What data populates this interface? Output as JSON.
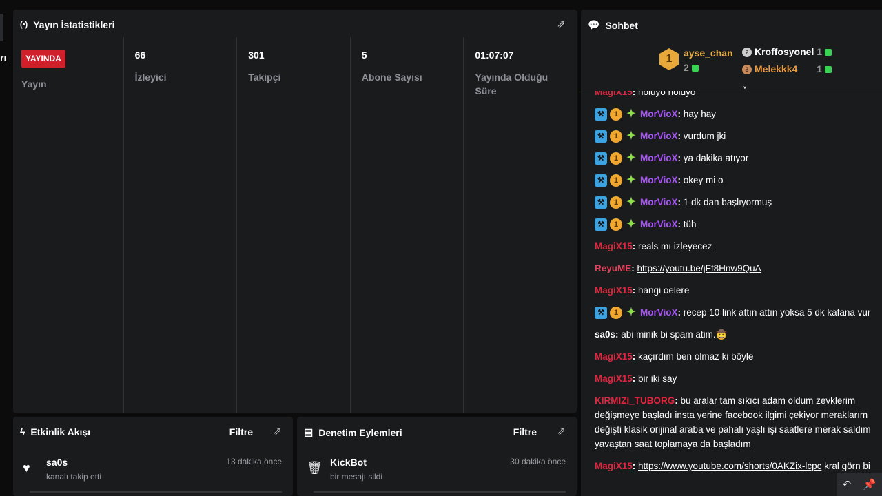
{
  "left_fragment": "rı",
  "stats": {
    "title": "Yayın İstatistikleri",
    "items": [
      {
        "value": "YAYINDA",
        "label": "Yayın",
        "live": true
      },
      {
        "value": "66",
        "label": "İzleyici"
      },
      {
        "value": "301",
        "label": "Takipçi"
      },
      {
        "value": "5",
        "label": "Abone Sayısı"
      },
      {
        "value": "01:07:07",
        "label": "Yayında Olduğu Süre"
      }
    ]
  },
  "activity": {
    "title": "Etkinlik Akışı",
    "filter": "Filtre",
    "items": [
      {
        "name": "sa0s",
        "desc": "kanalı takip etti",
        "time": "13 dakika önce",
        "icon": "heart-icon"
      }
    ]
  },
  "moderation": {
    "title": "Denetim Eylemleri",
    "filter": "Filtre",
    "items": [
      {
        "name": "KickBot",
        "desc": "bir mesajı sildi",
        "time": "30 dakika önce",
        "icon": "trash-icon"
      }
    ]
  },
  "chat": {
    "title": "Sohbet",
    "leaderboard": [
      {
        "rank": "1",
        "name": "ayse_chan",
        "count": "2",
        "color": "#e8b04a"
      },
      {
        "rank": "2",
        "name": "Kroffosyonel",
        "count": "1",
        "color": "#ffffff"
      },
      {
        "rank": "3",
        "name": "Melekkk4",
        "count": "1",
        "color": "#e89a3c"
      }
    ],
    "messages": [
      {
        "user": "MagiX15",
        "color": "#e0263f",
        "text": "noluyo noluyo"
      },
      {
        "user": "MorVioX",
        "color": "#a855f7",
        "badges": true,
        "text": "hay hay"
      },
      {
        "user": "MorVioX",
        "color": "#a855f7",
        "badges": true,
        "text": "vurdum jki"
      },
      {
        "user": "MorVioX",
        "color": "#a855f7",
        "badges": true,
        "text": "ya dakika atıyor"
      },
      {
        "user": "MorVioX",
        "color": "#a855f7",
        "badges": true,
        "text": "okey mi o"
      },
      {
        "user": "MorVioX",
        "color": "#a855f7",
        "badges": true,
        "text": "1 dk dan başlıyormuş"
      },
      {
        "user": "MorVioX",
        "color": "#a855f7",
        "badges": true,
        "text": "tüh"
      },
      {
        "user": "MagiX15",
        "color": "#e0263f",
        "text": "reals mı izleyecez"
      },
      {
        "user": "ReyuME",
        "color": "#e0405a",
        "link": "https://youtu.be/jFf8Hnw9QuA"
      },
      {
        "user": "MagiX15",
        "color": "#e0263f",
        "text": "hangi oelere"
      },
      {
        "user": "MorVioX",
        "color": "#a855f7",
        "badges": true,
        "text": "recep 10 link attın attın yoksa 5 dk kafana vur"
      },
      {
        "user": "sa0s",
        "color": "#ffffff",
        "text": "abi minik bi spam atim.🤠"
      },
      {
        "user": "MagiX15",
        "color": "#e0263f",
        "text": "kaçırdım ben olmaz ki böyle"
      },
      {
        "user": "MagiX15",
        "color": "#e0263f",
        "text": "bir iki say"
      },
      {
        "user": "KIRMIZI_TUBORG",
        "color": "#e0263f",
        "text": "bu aralar tam sıkıcı adam oldum zevklerim değişmeye başladı insta yerine facebook ilgimi çekiyor meraklarım değişti klasik orijinal araba ve pahalı yaşlı işi saatlere merak saldım yavaştan saat toplamaya da başladım",
        "wrap": true
      },
      {
        "user": "MagiX15",
        "color": "#e0263f",
        "link": "https://www.youtube.com/shorts/0AKZix-lcpc",
        "text": " kral görn bi",
        "wrap": true
      }
    ]
  }
}
